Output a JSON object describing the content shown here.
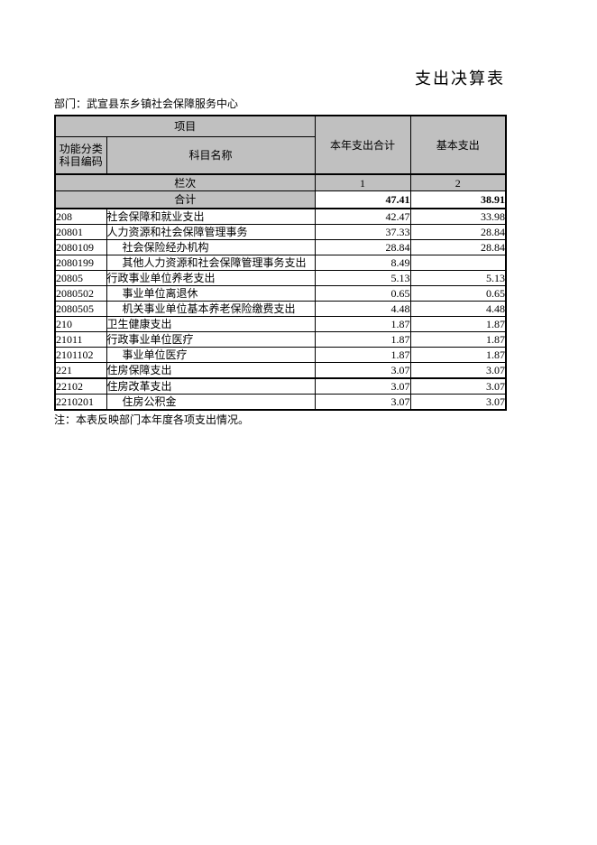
{
  "page": {
    "title": "支出决算表",
    "department_line": "部门：武宣县东乡镇社会保障服务中心",
    "note": "注：本表反映部门本年度各项支出情况。"
  },
  "colors": {
    "header_bg": "#c0c0c0",
    "border": "#000000"
  },
  "table": {
    "header": {
      "project": "项目",
      "code_line1": "功能分类",
      "code_line2": "科目编码",
      "subject_name": "科目名称",
      "total_col": "本年支出合计",
      "basic_col": "基本支出"
    },
    "lanci_row": {
      "label": "栏次",
      "col1": "1",
      "col2": "2"
    },
    "total_row": {
      "label": "合计",
      "total": "47.41",
      "basic": "38.91"
    },
    "rows": [
      {
        "code": "208",
        "name": "社会保障和就业支出",
        "total": "42.47",
        "basic": "33.98"
      },
      {
        "code": "20801",
        "name": "人力资源和社会保障管理事务",
        "total": "37.33",
        "basic": "28.84"
      },
      {
        "code": "2080109",
        "name": "社会保险经办机构",
        "total": "28.84",
        "basic": "28.84"
      },
      {
        "code": "2080199",
        "name": "其他人力资源和社会保障管理事务支出",
        "total": "8.49",
        "basic": ""
      },
      {
        "code": "20805",
        "name": "行政事业单位养老支出",
        "total": "5.13",
        "basic": "5.13"
      },
      {
        "code": "2080502",
        "name": "事业单位离退休",
        "total": "0.65",
        "basic": "0.65"
      },
      {
        "code": "2080505",
        "name": "机关事业单位基本养老保险缴费支出",
        "total": "4.48",
        "basic": "4.48"
      },
      {
        "code": "210",
        "name": "卫生健康支出",
        "total": "1.87",
        "basic": "1.87"
      },
      {
        "code": "21011",
        "name": "行政事业单位医疗",
        "total": "1.87",
        "basic": "1.87"
      },
      {
        "code": "2101102",
        "name": "事业单位医疗",
        "total": "1.87",
        "basic": "1.87"
      },
      {
        "code": "221",
        "name": "住房保障支出",
        "total": "3.07",
        "basic": "3.07"
      },
      {
        "code": "22102",
        "name": "住房改革支出",
        "total": "3.07",
        "basic": "3.07"
      },
      {
        "code": "2210201",
        "name": "住房公积金",
        "total": "3.07",
        "basic": "3.07"
      }
    ]
  }
}
